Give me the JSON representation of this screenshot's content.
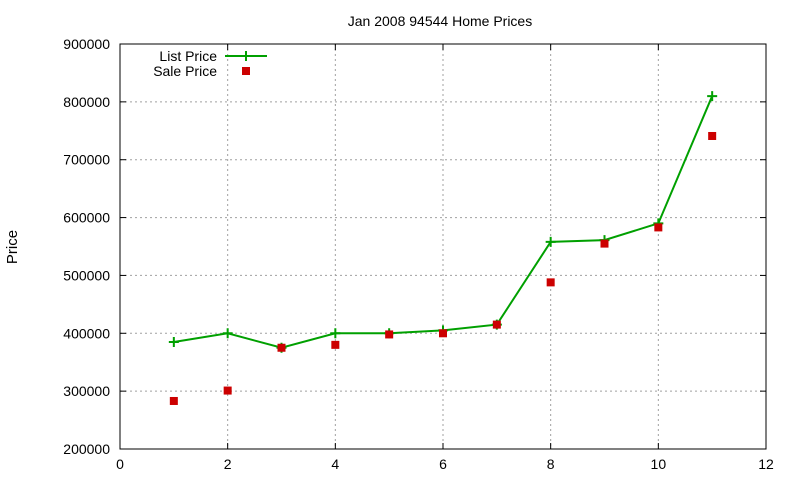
{
  "chart_data": {
    "type": "line",
    "title": "Jan 2008 94544 Home Prices",
    "xlabel": "",
    "ylabel": "Price",
    "xlim": [
      0,
      12
    ],
    "ylim": [
      200000,
      900000
    ],
    "xticks": [
      0,
      2,
      4,
      6,
      8,
      10,
      12
    ],
    "yticks": [
      200000,
      300000,
      400000,
      500000,
      600000,
      700000,
      800000,
      900000
    ],
    "grid": true,
    "legend_position": "top-left",
    "series": [
      {
        "name": "List Price",
        "style": "line-with-plus-markers",
        "color": "#00a000",
        "x": [
          1,
          2,
          3,
          4,
          5,
          6,
          7,
          8,
          9,
          10,
          11
        ],
        "values": [
          385000,
          400000,
          375000,
          400000,
          400000,
          405000,
          415000,
          558000,
          561000,
          590000,
          810000
        ]
      },
      {
        "name": "Sale Price",
        "style": "square-markers",
        "color": "#cc0000",
        "x": [
          1,
          2,
          3,
          4,
          5,
          6,
          7,
          8,
          9,
          10,
          11
        ],
        "values": [
          283000,
          301000,
          375000,
          380000,
          398000,
          400000,
          415000,
          488000,
          555000,
          583000,
          741000
        ]
      }
    ]
  }
}
